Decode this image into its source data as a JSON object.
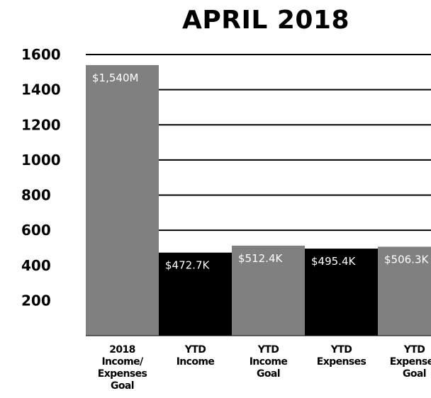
{
  "chart_data": {
    "type": "bar",
    "title": "APRIL 2018",
    "xlabel": "",
    "ylabel": "",
    "ylim": [
      0,
      1600
    ],
    "yticks": [
      200,
      400,
      600,
      800,
      1000,
      1200,
      1400,
      1600
    ],
    "grid": true,
    "categories": [
      [
        "2018",
        "Income/",
        "Expenses",
        "Goal"
      ],
      [
        "YTD",
        "Income"
      ],
      [
        "YTD",
        "Income",
        "Goal"
      ],
      [
        "YTD",
        "Expenses"
      ],
      [
        "YTD",
        "Expenses",
        "Goal"
      ]
    ],
    "values": [
      1540,
      472.7,
      512.4,
      495.4,
      506.3
    ],
    "data_labels": [
      "$1,540M",
      "$472.7K",
      "$512.4K",
      "$495.4K",
      "$506.3K"
    ],
    "bar_colors": [
      "#808080",
      "#000000",
      "#808080",
      "#000000",
      "#808080"
    ]
  }
}
